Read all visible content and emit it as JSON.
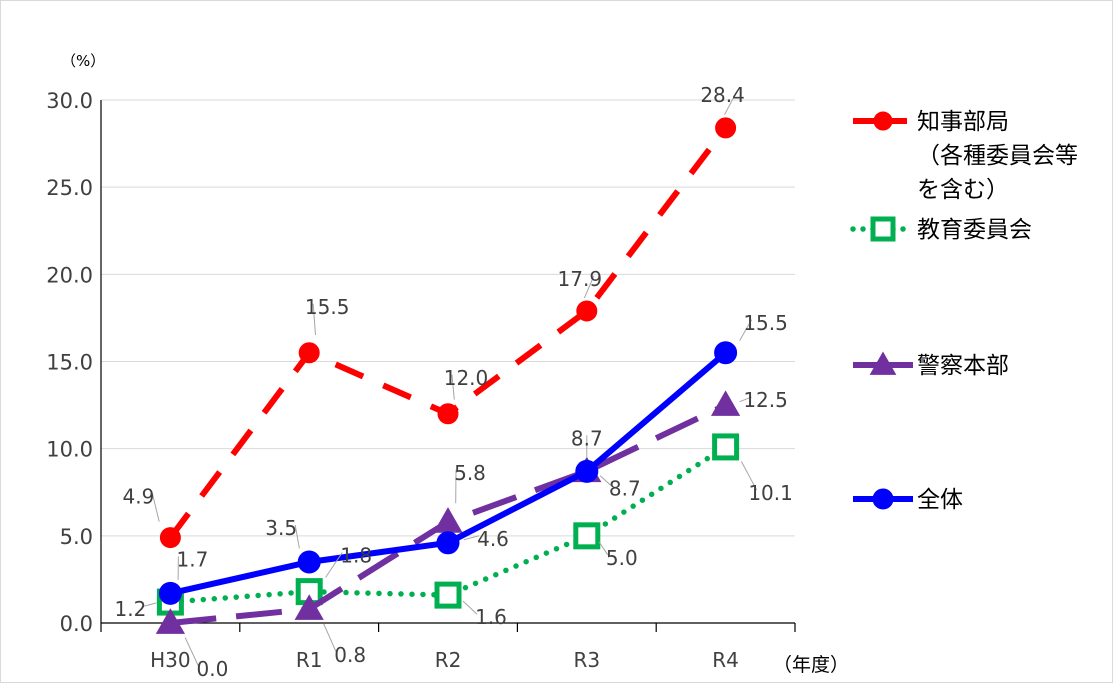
{
  "chart_data": {
    "type": "line",
    "y_unit_label": "（%）",
    "x_unit_label": "（年度）",
    "categories": [
      "H30",
      "R1",
      "R2",
      "R3",
      "R4"
    ],
    "ylim": [
      0,
      30
    ],
    "yticks": [
      "0.0",
      "5.0",
      "10.0",
      "15.0",
      "20.0",
      "25.0",
      "30.0"
    ],
    "grid": true,
    "legend_position": "right",
    "series": [
      {
        "name": [
          "知事部局",
          "（各種委員会等",
          "を含む）"
        ],
        "color": "#ff0000",
        "line_style": "dashed",
        "marker": "circle",
        "values": [
          4.9,
          15.5,
          12.0,
          17.9,
          28.4
        ],
        "labels": [
          "4.9",
          "15.5",
          "12.0",
          "17.9",
          "28.4"
        ]
      },
      {
        "name": [
          "教育委員会"
        ],
        "color": "#00b050",
        "line_style": "dotted",
        "marker": "square",
        "values": [
          1.2,
          1.8,
          1.6,
          5.0,
          10.1
        ],
        "labels": [
          "1.2",
          "1.8",
          "1.6",
          "5.0",
          "10.1"
        ]
      },
      {
        "name": [
          "警察本部"
        ],
        "color": "#7030a0",
        "line_style": "long-dash",
        "marker": "triangle",
        "values": [
          0.0,
          0.8,
          5.8,
          8.7,
          12.5
        ],
        "labels": [
          "0.0",
          "0.8",
          "5.8",
          "8.7",
          "12.5"
        ]
      },
      {
        "name": [
          "全体"
        ],
        "color": "#0000ff",
        "line_style": "solid",
        "marker": "circle",
        "values": [
          1.7,
          3.5,
          4.6,
          8.7,
          15.5
        ],
        "labels": [
          "1.7",
          "3.5",
          "4.6",
          "8.7",
          "15.5"
        ]
      }
    ]
  }
}
